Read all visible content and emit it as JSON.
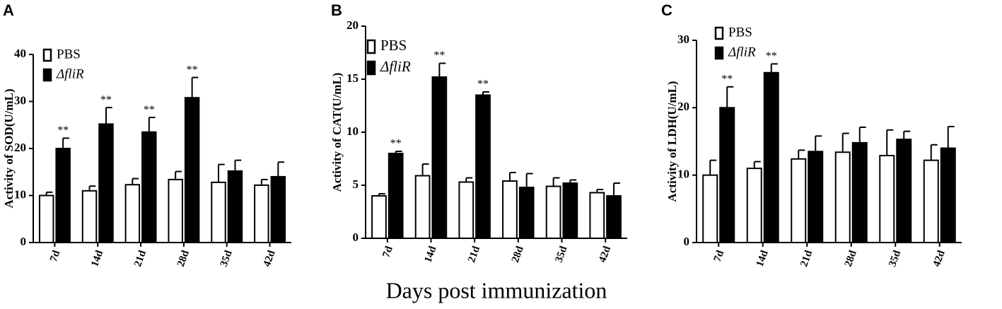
{
  "chart_data": [
    {
      "type": "bar",
      "panel": "A",
      "ylabel": "Activity of SOD(U/mL)",
      "categories": [
        "7d",
        "14d",
        "21d",
        "28d",
        "35d",
        "42d"
      ],
      "ylim": [
        0,
        40
      ],
      "yticks": [
        0,
        10,
        20,
        30,
        40
      ],
      "series": [
        {
          "name": "PBS",
          "color": "#ffffff",
          "values": [
            10,
            11,
            12.3,
            13.4,
            12.8,
            12.2
          ],
          "errors": [
            0.7,
            1,
            1.3,
            1.7,
            3.8,
            1.2
          ]
        },
        {
          "name": "ΔfliR",
          "color": "#000000",
          "values": [
            20,
            25.2,
            23.5,
            30.8,
            15.2,
            14
          ],
          "errors": [
            2.2,
            3.5,
            3.1,
            4.3,
            2.3,
            3.1
          ],
          "sig_labels": [
            "**",
            "**",
            "**",
            "**",
            null,
            null
          ]
        }
      ]
    },
    {
      "type": "bar",
      "panel": "B",
      "ylabel": "Activity of CAT(U/mL)",
      "xlabel": "Days post immunization",
      "categories": [
        "7d",
        "14d",
        "21d",
        "28d",
        "35d",
        "42d"
      ],
      "ylim": [
        0,
        20
      ],
      "yticks": [
        0,
        5,
        10,
        15,
        20
      ],
      "series": [
        {
          "name": "PBS",
          "color": "#ffffff",
          "values": [
            4,
            5.9,
            5.3,
            5.4,
            4.9,
            4.3
          ],
          "errors": [
            0.2,
            1.1,
            0.4,
            0.8,
            0.8,
            0.3
          ]
        },
        {
          "name": "ΔfliR",
          "color": "#000000",
          "values": [
            8,
            15.2,
            13.5,
            4.8,
            5.2,
            4
          ],
          "errors": [
            0.2,
            1.3,
            0.3,
            1.3,
            0.3,
            1.2
          ],
          "sig_labels": [
            "**",
            "**",
            "**",
            null,
            null,
            null
          ]
        }
      ]
    },
    {
      "type": "bar",
      "panel": "C",
      "ylabel": "Activity of LDH(U/mL)",
      "categories": [
        "7d",
        "14d",
        "21d",
        "28d",
        "35d",
        "42d"
      ],
      "ylim": [
        0,
        30
      ],
      "yticks": [
        0,
        10,
        20,
        30
      ],
      "series": [
        {
          "name": "PBS",
          "color": "#ffffff",
          "values": [
            10,
            11,
            12.4,
            13.4,
            12.9,
            12.2
          ],
          "errors": [
            2.2,
            1,
            1.3,
            2.8,
            3.8,
            2.3
          ]
        },
        {
          "name": "ΔfliR",
          "color": "#000000",
          "values": [
            20,
            25.2,
            13.5,
            14.8,
            15.3,
            14
          ],
          "errors": [
            3.1,
            1.3,
            2.3,
            2.3,
            1.2,
            3.2
          ],
          "sig_labels": [
            "**",
            "**",
            null,
            null,
            null,
            null
          ]
        }
      ]
    }
  ]
}
